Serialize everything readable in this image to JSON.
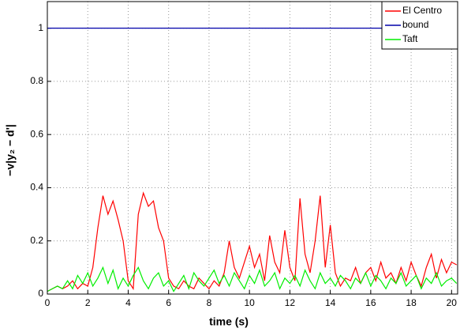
{
  "chart_data": {
    "type": "line",
    "xlabel": "time (s)",
    "ylabel": "−v|y₂ − d'|",
    "x": [
      0,
      0.25,
      0.5,
      0.75,
      1,
      1.25,
      1.5,
      1.75,
      2,
      2.25,
      2.5,
      2.75,
      3,
      3.25,
      3.5,
      3.75,
      4,
      4.25,
      4.5,
      4.75,
      5,
      5.25,
      5.5,
      5.75,
      6,
      6.25,
      6.5,
      6.75,
      7,
      7.25,
      7.5,
      7.75,
      8,
      8.25,
      8.5,
      8.75,
      9,
      9.25,
      9.5,
      9.75,
      10,
      10.25,
      10.5,
      10.75,
      11,
      11.25,
      11.5,
      11.75,
      12,
      12.25,
      12.5,
      12.75,
      13,
      13.25,
      13.5,
      13.75,
      14,
      14.25,
      14.5,
      14.75,
      15,
      15.25,
      15.5,
      15.75,
      16,
      16.25,
      16.5,
      16.75,
      17,
      17.25,
      17.5,
      17.75,
      18,
      18.25,
      18.5,
      18.75,
      19,
      19.25,
      19.5,
      19.75,
      20,
      20.25
    ],
    "series": [
      {
        "name": "El Centro",
        "color": "#ff0000",
        "values": [
          0.01,
          0.02,
          0.03,
          0.02,
          0.03,
          0.05,
          0.02,
          0.04,
          0.03,
          0.1,
          0.25,
          0.37,
          0.3,
          0.35,
          0.28,
          0.2,
          0.05,
          0.02,
          0.3,
          0.38,
          0.33,
          0.35,
          0.25,
          0.2,
          0.06,
          0.03,
          0.02,
          0.05,
          0.03,
          0.02,
          0.06,
          0.04,
          0.02,
          0.05,
          0.03,
          0.08,
          0.2,
          0.1,
          0.06,
          0.12,
          0.18,
          0.1,
          0.15,
          0.05,
          0.22,
          0.12,
          0.08,
          0.24,
          0.1,
          0.05,
          0.36,
          0.15,
          0.08,
          0.2,
          0.37,
          0.1,
          0.26,
          0.08,
          0.03,
          0.06,
          0.05,
          0.1,
          0.04,
          0.08,
          0.1,
          0.05,
          0.12,
          0.06,
          0.08,
          0.04,
          0.1,
          0.05,
          0.12,
          0.07,
          0.03,
          0.1,
          0.15,
          0.06,
          0.13,
          0.08,
          0.12,
          0.11
        ]
      },
      {
        "name": "bound",
        "color": "#0000aa",
        "values": [
          1,
          1,
          1,
          1,
          1,
          1,
          1,
          1,
          1,
          1,
          1,
          1,
          1,
          1,
          1,
          1,
          1,
          1,
          1,
          1,
          1,
          1,
          1,
          1,
          1,
          1,
          1,
          1,
          1,
          1,
          1,
          1,
          1,
          1,
          1,
          1,
          1,
          1,
          1,
          1,
          1,
          1,
          1,
          1,
          1,
          1,
          1,
          1,
          1,
          1,
          1,
          1,
          1,
          1,
          1,
          1,
          1,
          1,
          1,
          1,
          1,
          1,
          1,
          1,
          1,
          1,
          1,
          1,
          1,
          1,
          1,
          1,
          1,
          1,
          1,
          1,
          1,
          1,
          1,
          1,
          1,
          1
        ]
      },
      {
        "name": "Taft",
        "color": "#00ee00",
        "values": [
          0.01,
          0.02,
          0.03,
          0.02,
          0.05,
          0.02,
          0.07,
          0.04,
          0.08,
          0.03,
          0.06,
          0.1,
          0.04,
          0.09,
          0.02,
          0.06,
          0.03,
          0.07,
          0.1,
          0.05,
          0.02,
          0.06,
          0.08,
          0.03,
          0.05,
          0.01,
          0.04,
          0.07,
          0.02,
          0.08,
          0.05,
          0.03,
          0.06,
          0.09,
          0.04,
          0.07,
          0.03,
          0.08,
          0.05,
          0.02,
          0.07,
          0.04,
          0.09,
          0.03,
          0.05,
          0.08,
          0.02,
          0.06,
          0.04,
          0.07,
          0.03,
          0.09,
          0.05,
          0.02,
          0.08,
          0.04,
          0.06,
          0.03,
          0.07,
          0.05,
          0.02,
          0.06,
          0.04,
          0.08,
          0.03,
          0.07,
          0.05,
          0.02,
          0.06,
          0.04,
          0.08,
          0.03,
          0.05,
          0.07,
          0.02,
          0.06,
          0.04,
          0.08,
          0.03,
          0.05,
          0.06,
          0.04
        ]
      }
    ],
    "xlim": [
      0,
      20.3
    ],
    "xticks": [
      0,
      2,
      4,
      6,
      8,
      10,
      12,
      14,
      16,
      18,
      20
    ],
    "ylim": [
      0,
      1.1
    ],
    "yticks": [
      0,
      0.2,
      0.4,
      0.6,
      0.8,
      1
    ],
    "grid": true,
    "legend": "northeast"
  }
}
